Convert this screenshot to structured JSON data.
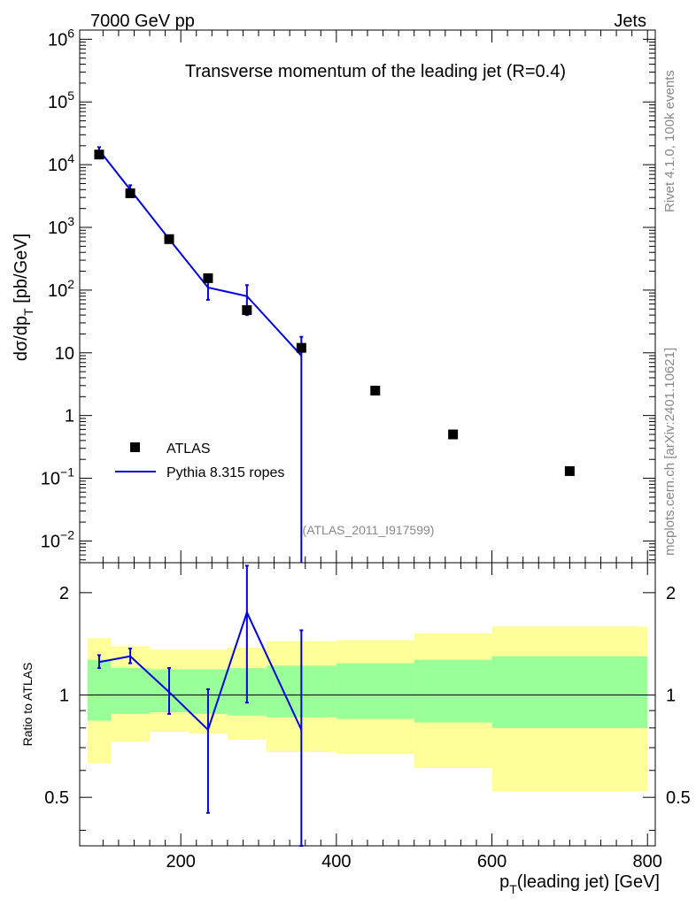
{
  "header": {
    "left": "7000 GeV pp",
    "right": "Jets"
  },
  "side_labels": {
    "rivet": "Rivet 4.1.0,  100k events",
    "mcplots": "mcplots.cern.ch [arXiv:2401.10621]"
  },
  "chart_data": {
    "type": "line",
    "title": "Transverse momentum of the leading jet (R=0.4)",
    "watermark": "(ATLAS_2011_I917599)",
    "xlabel": "p_T(leading jet) [GeV]",
    "xlabel_main": "p",
    "xlabel_sub": "T",
    "xlabel_rest": "(leading jet) [GeV]",
    "ylabel_main": "dσ/dp",
    "ylabel_sub": "T",
    "ylabel_rest": " [pb/GeV]",
    "xlim": [
      70,
      810
    ],
    "ylim": [
      0.0045,
      1400000
    ],
    "yscale": "log",
    "x_ticks": [
      {
        "value": 200,
        "label": "200"
      },
      {
        "value": 400,
        "label": "400"
      },
      {
        "value": 600,
        "label": "600"
      },
      {
        "value": 800,
        "label": "800"
      }
    ],
    "y_ticks": [
      {
        "value": 1000000,
        "base": "10",
        "exp": "6",
        "plain": ""
      },
      {
        "value": 100000,
        "base": "10",
        "exp": "5",
        "plain": ""
      },
      {
        "value": 10000,
        "base": "10",
        "exp": "4",
        "plain": ""
      },
      {
        "value": 1000,
        "base": "10",
        "exp": "3",
        "plain": ""
      },
      {
        "value": 100,
        "base": "10",
        "exp": "2",
        "plain": ""
      },
      {
        "value": 10,
        "base": "",
        "exp": "",
        "plain": "10"
      },
      {
        "value": 1,
        "base": "",
        "exp": "",
        "plain": "1"
      },
      {
        "value": 0.1,
        "base": "10",
        "exp": "−1",
        "plain": ""
      },
      {
        "value": 0.01,
        "base": "10",
        "exp": "−2",
        "plain": ""
      }
    ],
    "legend": [
      {
        "label": "ATLAS",
        "kind": "marker",
        "color": "#000000"
      },
      {
        "label": "Pythia 8.315 ropes",
        "kind": "line",
        "color": "#0000e0"
      }
    ],
    "series": [
      {
        "name": "ATLAS",
        "color": "#000000",
        "x": [
          95,
          135,
          185,
          235,
          285,
          355,
          450,
          550,
          700
        ],
        "y": [
          14500,
          3500,
          650,
          155,
          48,
          12,
          2.5,
          0.5,
          0.13
        ]
      },
      {
        "name": "Pythia 8.315 ropes",
        "color": "#0000e0",
        "x": [
          95,
          135,
          185,
          235,
          285,
          355
        ],
        "y": [
          17000,
          4000,
          650,
          110,
          80,
          9
        ],
        "err_low": [
          14500,
          3300,
          580,
          70,
          40,
          0
        ],
        "err_high": [
          19000,
          4700,
          720,
          155,
          120,
          18
        ]
      }
    ],
    "ratio_panel": {
      "ylabel": "Ratio to ATLAS",
      "ylim": [
        0.36,
        2.45
      ],
      "yscale": "log",
      "y_ticks": [
        {
          "value": 0.5,
          "label": "0.5"
        },
        {
          "value": 1,
          "label": "1"
        },
        {
          "value": 2,
          "label": "2"
        }
      ],
      "bin_edges": [
        80,
        110,
        160,
        210,
        260,
        310,
        400,
        500,
        600,
        800
      ],
      "band_1sigma": {
        "color": "#99ff99",
        "low": [
          0.84,
          0.88,
          0.89,
          0.88,
          0.87,
          0.86,
          0.85,
          0.83,
          0.8
        ],
        "high": [
          1.27,
          1.2,
          1.19,
          1.19,
          1.2,
          1.22,
          1.24,
          1.27,
          1.3
        ]
      },
      "band_2sigma": {
        "color": "#ffff99",
        "low": [
          0.63,
          0.73,
          0.78,
          0.77,
          0.74,
          0.68,
          0.67,
          0.61,
          0.52
        ],
        "high": [
          1.47,
          1.39,
          1.36,
          1.36,
          1.38,
          1.44,
          1.45,
          1.52,
          1.59
        ]
      },
      "mc": {
        "x": [
          95,
          135,
          185,
          235,
          285,
          355
        ],
        "y": [
          1.25,
          1.3,
          1.02,
          0.79,
          1.75,
          0.79
        ],
        "err_low": [
          1.2,
          1.24,
          0.88,
          0.45,
          0.95,
          0.3
        ],
        "err_high": [
          1.31,
          1.37,
          1.2,
          1.04,
          2.4,
          1.55
        ]
      }
    }
  }
}
